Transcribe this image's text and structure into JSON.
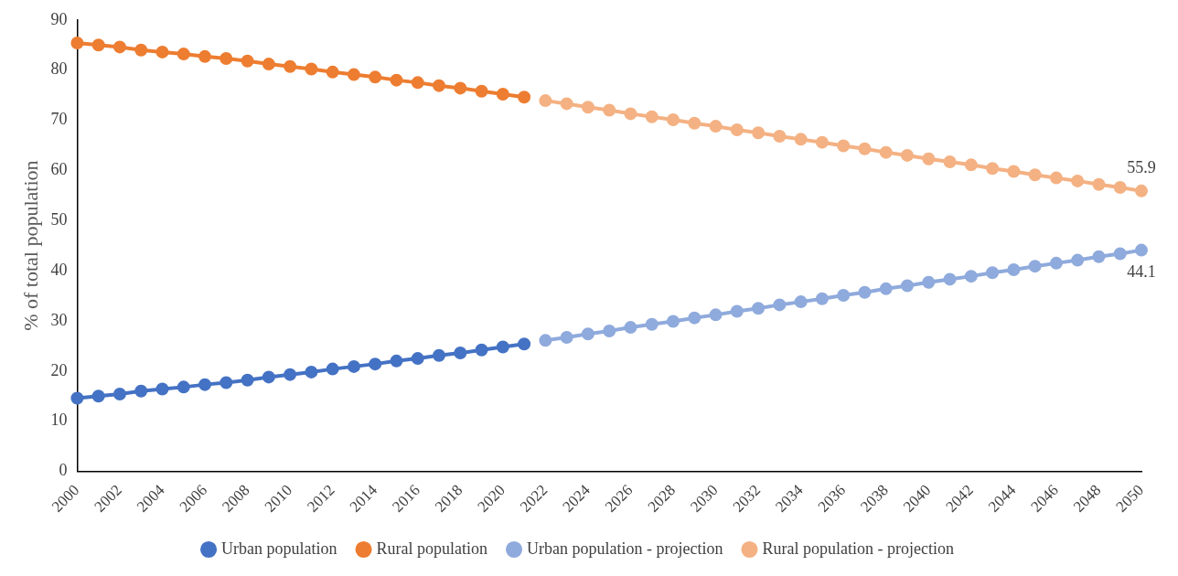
{
  "chart_data": {
    "type": "line",
    "ylabel": "% of total population",
    "categories": [
      "2000",
      null,
      "2002",
      null,
      "2004",
      null,
      "2006",
      null,
      "2008",
      null,
      "2010",
      null,
      "2012",
      null,
      "2014",
      null,
      "2016",
      null,
      "2018",
      null,
      "2020",
      null,
      "2022",
      null,
      "2024",
      null,
      "2026",
      null,
      "2028",
      null,
      "2030",
      null,
      "2032",
      null,
      "2034",
      null,
      "2036",
      null,
      "2038",
      null,
      "2040",
      null,
      "2042",
      null,
      "2044",
      null,
      "2046",
      null,
      "2048",
      null,
      "2050"
    ],
    "series": [
      {
        "name": "Urban population",
        "color": "#4472c4",
        "values": [
          14.6,
          15.0,
          15.4,
          16.0,
          16.4,
          16.8,
          17.3,
          17.7,
          18.2,
          18.8,
          19.3,
          19.8,
          20.4,
          20.9,
          21.4,
          22.0,
          22.5,
          23.1,
          23.6,
          24.2,
          24.8,
          25.4,
          null,
          null,
          null,
          null,
          null,
          null,
          null,
          null,
          null,
          null,
          null,
          null,
          null,
          null,
          null,
          null,
          null,
          null,
          null,
          null,
          null,
          null,
          null,
          null,
          null,
          null,
          null,
          null,
          null
        ]
      },
      {
        "name": "Rural population",
        "color": "#ed7d31",
        "values": [
          85.4,
          85.0,
          84.6,
          84.0,
          83.6,
          83.2,
          82.7,
          82.3,
          81.8,
          81.2,
          80.7,
          80.2,
          79.6,
          79.1,
          78.6,
          78.0,
          77.5,
          76.9,
          76.4,
          75.8,
          75.2,
          74.6,
          null,
          null,
          null,
          null,
          null,
          null,
          null,
          null,
          null,
          null,
          null,
          null,
          null,
          null,
          null,
          null,
          null,
          null,
          null,
          null,
          null,
          null,
          null,
          null,
          null,
          null,
          null,
          null,
          null
        ]
      },
      {
        "name": "Urban population - projection",
        "color": "#8faadc",
        "values": [
          null,
          null,
          null,
          null,
          null,
          null,
          null,
          null,
          null,
          null,
          null,
          null,
          null,
          null,
          null,
          null,
          null,
          null,
          null,
          null,
          null,
          null,
          26.1,
          26.7,
          27.4,
          28.0,
          28.7,
          29.3,
          29.9,
          30.6,
          31.2,
          31.9,
          32.5,
          33.2,
          33.8,
          34.4,
          35.1,
          35.7,
          36.4,
          37.0,
          37.7,
          38.3,
          38.9,
          39.6,
          40.2,
          40.9,
          41.5,
          42.1,
          42.8,
          43.4,
          44.1
        ],
        "value_labels": [
          null,
          null,
          null,
          null,
          null,
          null,
          null,
          null,
          null,
          null,
          null,
          null,
          null,
          null,
          null,
          null,
          null,
          null,
          null,
          null,
          null,
          null,
          null,
          null,
          null,
          null,
          null,
          null,
          null,
          null,
          null,
          null,
          null,
          null,
          null,
          null,
          null,
          null,
          null,
          null,
          null,
          null,
          null,
          null,
          null,
          null,
          null,
          null,
          null,
          null,
          "44.1"
        ]
      },
      {
        "name": "Rural population - projection",
        "color": "#f4b183",
        "values": [
          null,
          null,
          null,
          null,
          null,
          null,
          null,
          null,
          null,
          null,
          null,
          null,
          null,
          null,
          null,
          null,
          null,
          null,
          null,
          null,
          null,
          null,
          73.9,
          73.3,
          72.6,
          72.0,
          71.3,
          70.7,
          70.1,
          69.4,
          68.8,
          68.1,
          67.5,
          66.8,
          66.2,
          65.6,
          64.9,
          64.3,
          63.6,
          63.0,
          62.3,
          61.7,
          61.1,
          60.4,
          59.8,
          59.1,
          58.5,
          57.9,
          57.2,
          56.6,
          55.9
        ],
        "value_labels": [
          null,
          null,
          null,
          null,
          null,
          null,
          null,
          null,
          null,
          null,
          null,
          null,
          null,
          null,
          null,
          null,
          null,
          null,
          null,
          null,
          null,
          null,
          null,
          null,
          null,
          null,
          null,
          null,
          null,
          null,
          null,
          null,
          null,
          null,
          null,
          null,
          null,
          null,
          null,
          null,
          null,
          null,
          null,
          null,
          null,
          null,
          null,
          null,
          null,
          null,
          "55.9"
        ]
      }
    ],
    "ylim": [
      0,
      90
    ],
    "yticks": [
      0,
      10,
      20,
      30,
      40,
      50,
      60,
      70,
      80,
      90
    ],
    "grid": false,
    "legend": "bottom",
    "marker": "circle",
    "line_style": "solid"
  }
}
